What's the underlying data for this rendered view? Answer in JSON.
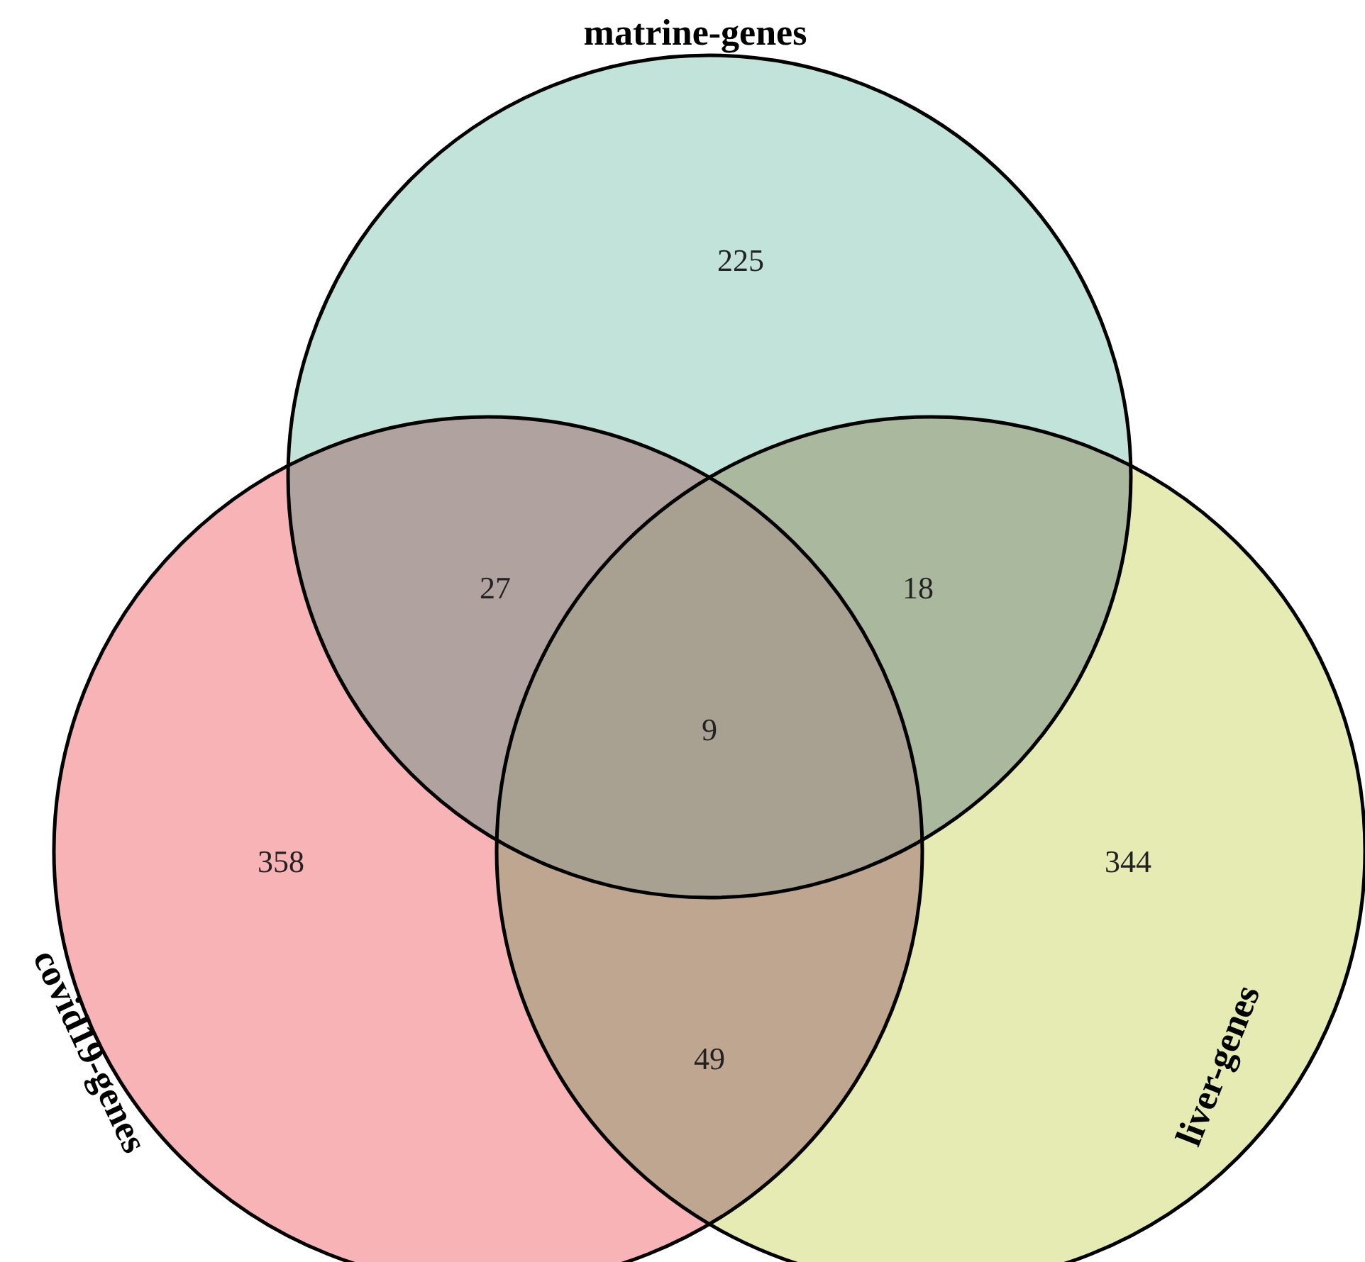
{
  "chart_data": {
    "type": "other",
    "categories": [
      "matrine-genes",
      "covid19-genes",
      "liver-genes"
    ],
    "colors": [
      "#c2e3d9",
      "#f7b3b5",
      "#e6ebb3"
    ],
    "values": [
      225,
      358,
      344
    ],
    "data_labels": true,
    "annotations": [
      "27",
      "18",
      "49",
      "9"
    ]
  }
}
